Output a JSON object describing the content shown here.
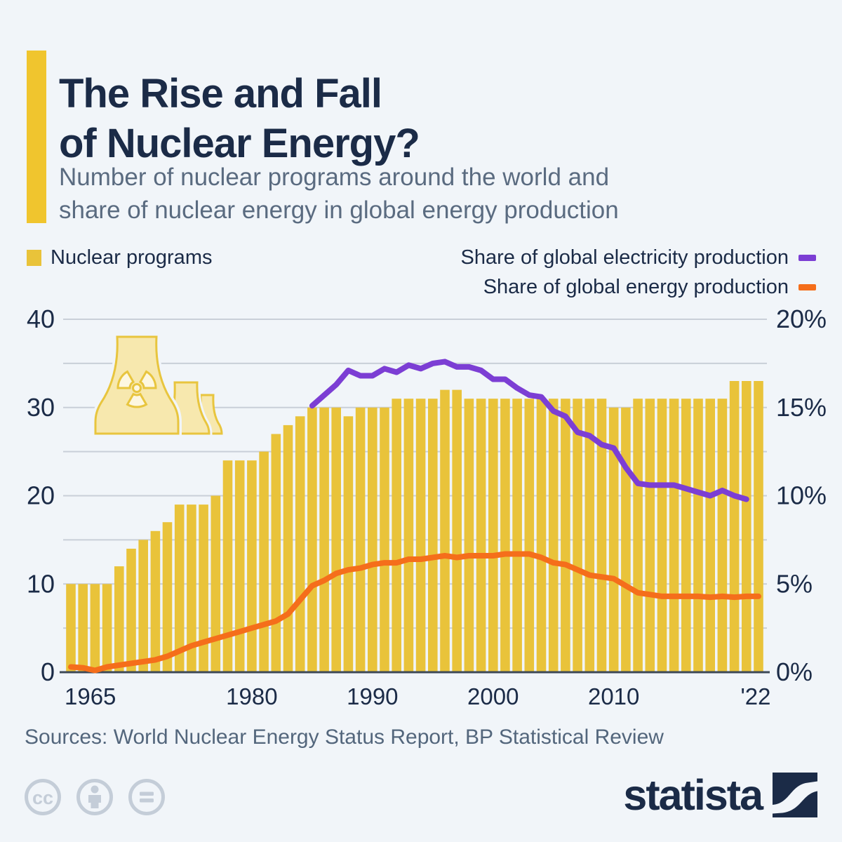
{
  "header": {
    "title_line1": "The Rise and Fall",
    "title_line2": "of Nuclear Energy?",
    "subtitle_line1": "Number of nuclear programs around the world and",
    "subtitle_line2": "share of nuclear energy in global energy production"
  },
  "legend": {
    "bars_label": "Nuclear programs",
    "electricity_label": "Share of global electricity production",
    "energy_label": "Share of global energy production"
  },
  "colors": {
    "background": "#f1f5f9",
    "bar": "#e9c33a",
    "accent": "#f0c52e",
    "purple": "#7c3ed4",
    "orange": "#f56e1b",
    "navy": "#1b2b47",
    "subtitle": "#5a6b80",
    "grid": "#c9cfd8",
    "axis_line": "#3d4957",
    "source_text": "#53667c",
    "cc_icon": "#c4cdd8",
    "plant_fill": "#f7e8ae",
    "plant_stroke": "#e8c53e"
  },
  "chart_data": {
    "type": "bar",
    "note": "bars = number of nuclear programs (left axis); two line series = shares in % (right axis)",
    "start_year": 1965,
    "end_year": 2022,
    "bars": {
      "name": "Nuclear programs",
      "axis": "left",
      "values": [
        10,
        10,
        10,
        10,
        12,
        14,
        15,
        16,
        17,
        19,
        19,
        19,
        20,
        24,
        24,
        24,
        25,
        27,
        28,
        29,
        30,
        30,
        30,
        29,
        30,
        30,
        30,
        31,
        31,
        31,
        31,
        32,
        32,
        31,
        31,
        31,
        31,
        31,
        31,
        31,
        31,
        31,
        31,
        31,
        31,
        30,
        30,
        31,
        31,
        31,
        31,
        31,
        31,
        31,
        31,
        33,
        33,
        33
      ]
    },
    "series": [
      {
        "name": "Share of global electricity production",
        "type": "line",
        "axis": "right",
        "color_key": "purple",
        "start_year": 1985,
        "values": [
          15.1,
          15.7,
          16.3,
          17.1,
          16.8,
          16.8,
          17.2,
          17.0,
          17.4,
          17.2,
          17.5,
          17.6,
          17.3,
          17.3,
          17.1,
          16.6,
          16.6,
          16.1,
          15.7,
          15.6,
          14.8,
          14.5,
          13.6,
          13.4,
          12.9,
          12.7,
          11.6,
          10.7,
          10.6,
          10.6,
          10.6,
          10.4,
          10.2,
          10.0,
          10.3,
          10.0,
          9.8
        ]
      },
      {
        "name": "Share of global energy production",
        "type": "line",
        "axis": "right",
        "color_key": "orange",
        "start_year": 1965,
        "values": [
          0.3,
          0.25,
          0.1,
          0.3,
          0.4,
          0.5,
          0.6,
          0.7,
          0.9,
          1.2,
          1.5,
          1.7,
          1.9,
          2.1,
          2.3,
          2.5,
          2.7,
          2.9,
          3.3,
          4.1,
          4.9,
          5.2,
          5.6,
          5.8,
          5.9,
          6.1,
          6.2,
          6.2,
          6.4,
          6.4,
          6.5,
          6.6,
          6.5,
          6.6,
          6.6,
          6.6,
          6.7,
          6.7,
          6.7,
          6.5,
          6.2,
          6.1,
          5.8,
          5.5,
          5.4,
          5.3,
          4.9,
          4.5,
          4.4,
          4.3,
          4.3,
          4.3,
          4.3,
          4.25,
          4.3,
          4.25,
          4.3,
          4.3
        ]
      }
    ],
    "left_axis": {
      "max": 40,
      "ticks": [
        40,
        30,
        20,
        10,
        0
      ],
      "grid_step": 5
    },
    "right_axis": {
      "max": 20,
      "ticks": [
        "20%",
        "15%",
        "10%",
        "5%",
        "0%"
      ],
      "tick_values": [
        20,
        15,
        10,
        5,
        0
      ]
    },
    "x_ticks": [
      {
        "year": 1965,
        "label": "1965"
      },
      {
        "year": 1980,
        "label": "1980"
      },
      {
        "year": 1990,
        "label": "1990"
      },
      {
        "year": 2000,
        "label": "2000"
      },
      {
        "year": 2010,
        "label": "2010"
      },
      {
        "year": 2022,
        "label": "'22"
      }
    ],
    "grid": true,
    "legend_position": "top"
  },
  "footer": {
    "sources": "Sources: World Nuclear Energy Status Report, BP Statistical Review",
    "brand": "statista",
    "cc_glyph": "cc"
  }
}
